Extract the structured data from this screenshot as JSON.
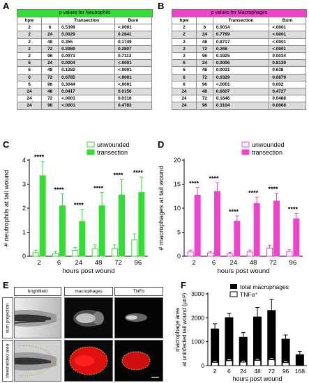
{
  "panels": {
    "A": "A",
    "B": "B",
    "C": "C",
    "D": "D",
    "E": "E",
    "F": "F"
  },
  "tableA": {
    "title": "p values for Neutrophils",
    "header_color": "#33dd33",
    "columns": [
      "hpw",
      "",
      "Transection",
      "Burn"
    ],
    "rows": [
      [
        "2",
        "6",
        "0.5399",
        "<.0001"
      ],
      [
        "2",
        "24",
        "0.0029",
        "0.2841"
      ],
      [
        "2",
        "48",
        "0.355",
        "0.1749"
      ],
      [
        "2",
        "72",
        "0.2989",
        "0.2807"
      ],
      [
        "2",
        "96",
        "0.0973",
        "0.7113"
      ],
      [
        "6",
        "24",
        "0.0004",
        "<.0001"
      ],
      [
        "6",
        "48",
        "0.1282",
        "<.0001"
      ],
      [
        "6",
        "72",
        "0.6785",
        "<.0001"
      ],
      [
        "6",
        "96",
        "0.3044",
        "<.0001"
      ],
      [
        "24",
        "48",
        "0.0417",
        "0.0156"
      ],
      [
        "24",
        "72",
        "<.0001",
        "0.0316"
      ],
      [
        "24",
        "96",
        "<.0001",
        "0.4783"
      ]
    ]
  },
  "tableB": {
    "title": "p values for Macrophages",
    "header_color": "#ee44cc",
    "columns": [
      "hpw",
      "",
      "Transection",
      "Burn"
    ],
    "rows": [
      [
        "2",
        "6",
        "0.0014",
        "<.0001"
      ],
      [
        "2",
        "24",
        "0.7769",
        "<.0001"
      ],
      [
        "2",
        "48",
        "0.8717",
        "<.0001"
      ],
      [
        "2",
        "72",
        "0.268",
        "<.0001"
      ],
      [
        "2",
        "96",
        "0.1925",
        "0.0034"
      ],
      [
        "6",
        "24",
        "0.0006",
        "0.8139"
      ],
      [
        "6",
        "48",
        "0.0031",
        "0.638"
      ],
      [
        "6",
        "72",
        "0.0329",
        "0.0879"
      ],
      [
        "6",
        "96",
        "<.0001",
        "0.002"
      ],
      [
        "24",
        "48",
        "0.6607",
        "0.4727"
      ],
      [
        "24",
        "72",
        "0.1646",
        "0.0488"
      ],
      [
        "24",
        "96",
        "0.3104",
        "0.0008"
      ]
    ]
  },
  "chart_data": [
    {
      "id": "C",
      "type": "bar",
      "categories": [
        "2",
        "6",
        "24",
        "48",
        "72",
        "96"
      ],
      "xlabel": "hours post wound",
      "ylabel": "# neutrophils at tail wound",
      "ylim": [
        0,
        4
      ],
      "yticks": [
        "0",
        "1",
        "2",
        "3",
        "4"
      ],
      "color": "#33dd33",
      "series": [
        {
          "name": "unwounded",
          "values": [
            0.15,
            0.12,
            0.25,
            0.32,
            0.32,
            0.68
          ],
          "errors": [
            0.1,
            0.08,
            0.12,
            0.15,
            0.15,
            0.25
          ],
          "fill": false
        },
        {
          "name": "transection",
          "values": [
            3.35,
            2.1,
            1.45,
            2.1,
            2.55,
            2.65
          ],
          "errors": [
            0.6,
            0.5,
            0.5,
            0.55,
            0.65,
            0.65
          ],
          "fill": true
        }
      ],
      "annotations": [
        "****",
        "****",
        "****",
        "****",
        "****",
        "****"
      ]
    },
    {
      "id": "D",
      "type": "bar",
      "categories": [
        "2",
        "6",
        "24",
        "48",
        "72",
        "96"
      ],
      "xlabel": "hours post wound",
      "ylabel": "# macrophages at tail wound",
      "ylim": [
        0,
        20
      ],
      "yticks": [
        "0",
        "5",
        "10",
        "15",
        "20"
      ],
      "color": "#ee44cc",
      "series": [
        {
          "name": "unwounded",
          "values": [
            0.9,
            0.7,
            0.5,
            0.9,
            1.7,
            1.0
          ],
          "errors": [
            0.4,
            0.3,
            0.3,
            0.4,
            0.6,
            0.4
          ],
          "fill": false
        },
        {
          "name": "transection",
          "values": [
            12.7,
            13.5,
            7.3,
            11.0,
            11.5,
            7.8
          ],
          "errors": [
            1.6,
            1.8,
            1.1,
            1.3,
            1.6,
            1.1
          ],
          "fill": true
        }
      ],
      "annotations": [
        "****",
        "****",
        "****",
        "****",
        "****",
        "****"
      ]
    },
    {
      "id": "F",
      "type": "bar",
      "categories": [
        "2",
        "6",
        "24",
        "48",
        "72",
        "96",
        "168"
      ],
      "xlabel": "hours post wound",
      "ylabel_lines": [
        "macrophage area",
        "at uninfected tail wound (µm²)"
      ],
      "ylim": [
        0,
        3000
      ],
      "yticks": [
        "0",
        "1000",
        "2000",
        "3000"
      ],
      "series": [
        {
          "name": "total macrophages",
          "values": [
            1550,
            2020,
            1200,
            2050,
            2320,
            1120,
            470
          ],
          "errors": [
            200,
            160,
            180,
            380,
            450,
            160,
            130
          ],
          "fill": "#000"
        },
        {
          "name": "TNFα⁺",
          "values": [
            130,
            200,
            140,
            210,
            240,
            120,
            0
          ],
          "errors": [
            40,
            50,
            40,
            50,
            60,
            40,
            0
          ],
          "fill": "#fff"
        }
      ]
    }
  ],
  "panelE": {
    "col_headers": [
      "brightfield",
      "macrophages",
      "TNFα"
    ],
    "row_headers": [
      "sum projection",
      "thresholded area"
    ]
  }
}
